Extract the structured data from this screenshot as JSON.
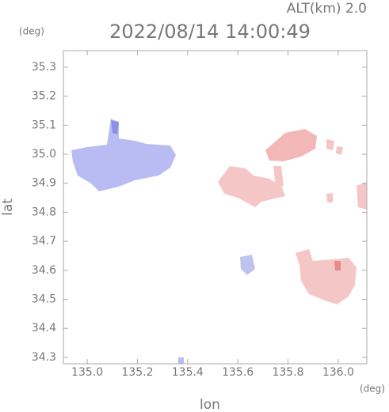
{
  "chart_data": {
    "type": "map",
    "title": "2022/08/14 14:00:49",
    "subtitle": "ALT(km) 2.0",
    "x_label": "lon",
    "y_label": "lat",
    "x_unit": "(deg)",
    "y_unit": "(deg)",
    "xlim": [
      134.905,
      136.114
    ],
    "ylim": [
      34.278,
      35.357
    ],
    "xticks": [
      {
        "value": 135.0,
        "label": "135.0"
      },
      135.2,
      135.4,
      135.6,
      135.8,
      {
        "value": 136.0,
        "label": "136.0"
      }
    ],
    "yticks": [
      34.3,
      34.4,
      34.5,
      34.6,
      34.7,
      34.8,
      34.9,
      {
        "value": 35.0,
        "label": "35.0"
      },
      35.1,
      35.2,
      35.3
    ]
  }
}
